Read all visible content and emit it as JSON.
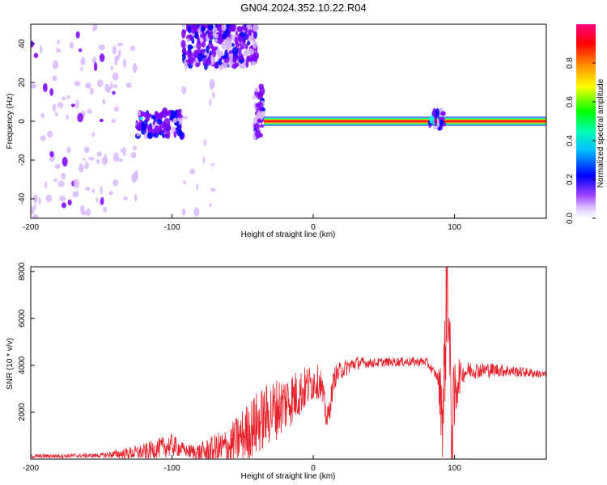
{
  "title": "GN04.2024.352.10.22.R04",
  "chart_data": [
    {
      "type": "heatmap",
      "xlabel": "Height of straight line (km)",
      "ylabel": "Frequency (Hz)",
      "xlim": [
        -200,
        165
      ],
      "ylim": [
        -50,
        50
      ],
      "xticks": [
        -200,
        -100,
        0,
        100
      ],
      "yticks": [
        -40,
        -20,
        0,
        20,
        40
      ],
      "colorbar": {
        "label": "Normalized spectral amplitude",
        "range": [
          0,
          1
        ],
        "ticks": [
          0.0,
          0.2,
          0.4,
          0.6,
          0.8
        ],
        "tick_labels": [
          "0.0",
          "0.2",
          "0.4",
          "0.6",
          "0.8"
        ],
        "colormap": [
          "#ffffff",
          "#d8b8ff",
          "#7a00ff",
          "#0000ff",
          "#00ffff",
          "#00ff00",
          "#ffff00",
          "#ff8000",
          "#ff0000",
          "#ff0080"
        ]
      },
      "regions": [
        {
          "x": [
            -200,
            -125
          ],
          "y": [
            -50,
            50
          ],
          "level": 0.12,
          "pattern": "scattered"
        },
        {
          "x": [
            -125,
            -92
          ],
          "y": [
            -8,
            5
          ],
          "level": 0.25,
          "pattern": "blob"
        },
        {
          "x": [
            -92,
            -40
          ],
          "y": [
            28,
            50
          ],
          "level": 0.2,
          "pattern": "blob"
        },
        {
          "x": [
            -92,
            -70
          ],
          "y": [
            -50,
            25
          ],
          "level": 0.06,
          "pattern": "scattered"
        },
        {
          "x": [
            -42,
            -35
          ],
          "y": [
            -8,
            18
          ],
          "level": 0.2,
          "pattern": "blob"
        },
        {
          "x": [
            -35,
            165
          ],
          "y": [
            -1,
            1
          ],
          "level": 0.95,
          "pattern": "tone"
        },
        {
          "x": [
            82,
            92
          ],
          "y": [
            -4,
            6
          ],
          "level": 0.3,
          "pattern": "blob"
        }
      ]
    },
    {
      "type": "line",
      "xlabel": "Height of straight line (km)",
      "ylabel": "SNR (10 * v/v)",
      "xlim": [
        -200,
        165
      ],
      "ylim": [
        0,
        8200
      ],
      "xticks": [
        -200,
        -100,
        0,
        100
      ],
      "yticks": [
        2000,
        4000,
        6000,
        8000
      ],
      "color": "#e8202a",
      "envelope": {
        "x": [
          -200,
          -150,
          -120,
          -100,
          -90,
          -80,
          -60,
          -50,
          -40,
          -30,
          -20,
          -10,
          0,
          5,
          10,
          15,
          20,
          30,
          40,
          60,
          80,
          88,
          92,
          95,
          98,
          102,
          110,
          130,
          150,
          165
        ],
        "y": [
          120,
          160,
          300,
          600,
          350,
          250,
          500,
          1000,
          1500,
          2000,
          2400,
          2800,
          3300,
          3300,
          1600,
          3500,
          3800,
          4100,
          4100,
          4150,
          4150,
          3500,
          2000,
          8000,
          1000,
          3500,
          3800,
          3800,
          3700,
          3600
        ]
      },
      "noise": {
        "x": [
          -200,
          -150,
          -120,
          -100,
          -90,
          -60,
          -40,
          -20,
          0,
          20,
          40,
          88,
          92,
          98,
          105,
          165
        ],
        "amp": [
          80,
          100,
          350,
          500,
          250,
          900,
          1400,
          1300,
          800,
          400,
          200,
          200,
          2500,
          2500,
          400,
          150
        ]
      }
    }
  ]
}
